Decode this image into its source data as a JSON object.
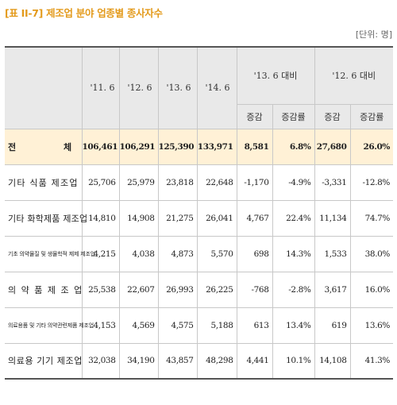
{
  "title": "[표 II-7] 제조업 분야 업종별 종사자수",
  "unit": "[단위: 명]",
  "header": {
    "years": [
      "'11. 6",
      "'12. 6",
      "'13. 6",
      "'14. 6"
    ],
    "group1": "'13. 6 대비",
    "group2": "'12. 6 대비",
    "sub": [
      "증감",
      "증감률",
      "증감",
      "증감률"
    ]
  },
  "total": {
    "label_a": "전",
    "label_b": "체",
    "values": [
      "106,461",
      "106,291",
      "125,390",
      "133,971",
      "8,581",
      "6.8%",
      "27,680",
      "26.0%"
    ]
  },
  "rows": [
    {
      "label": "기타 식품 제조업",
      "values": [
        "25,706",
        "25,979",
        "23,818",
        "22,648",
        "-1,170",
        "-4.9%",
        "-3,331",
        "-12.8%"
      ]
    },
    {
      "label": "기타 화학제품 제조업",
      "values": [
        "14,810",
        "14,908",
        "21,275",
        "26,041",
        "4,767",
        "22.4%",
        "11,134",
        "74.7%"
      ]
    },
    {
      "label": "기초 의약물질 및 생물학적 제제 제조업",
      "values": [
        "4,215",
        "4,038",
        "4,873",
        "5,570",
        "698",
        "14.3%",
        "1,533",
        "38.0%"
      ]
    },
    {
      "label": "의 약 품 제 조 업",
      "values": [
        "25,538",
        "22,607",
        "26,993",
        "26,225",
        "-768",
        "-2.8%",
        "3,617",
        "16.0%"
      ]
    },
    {
      "label": "의료용품 및 기타 의약관련제품 제조업",
      "values": [
        "4,153",
        "4,569",
        "4,575",
        "5,188",
        "613",
        "13.4%",
        "619",
        "13.6%"
      ]
    },
    {
      "label": "의료용 기기 제조업",
      "values": [
        "32,038",
        "34,190",
        "43,857",
        "48,298",
        "4,441",
        "10.1%",
        "14,108",
        "41.3%"
      ]
    }
  ]
}
